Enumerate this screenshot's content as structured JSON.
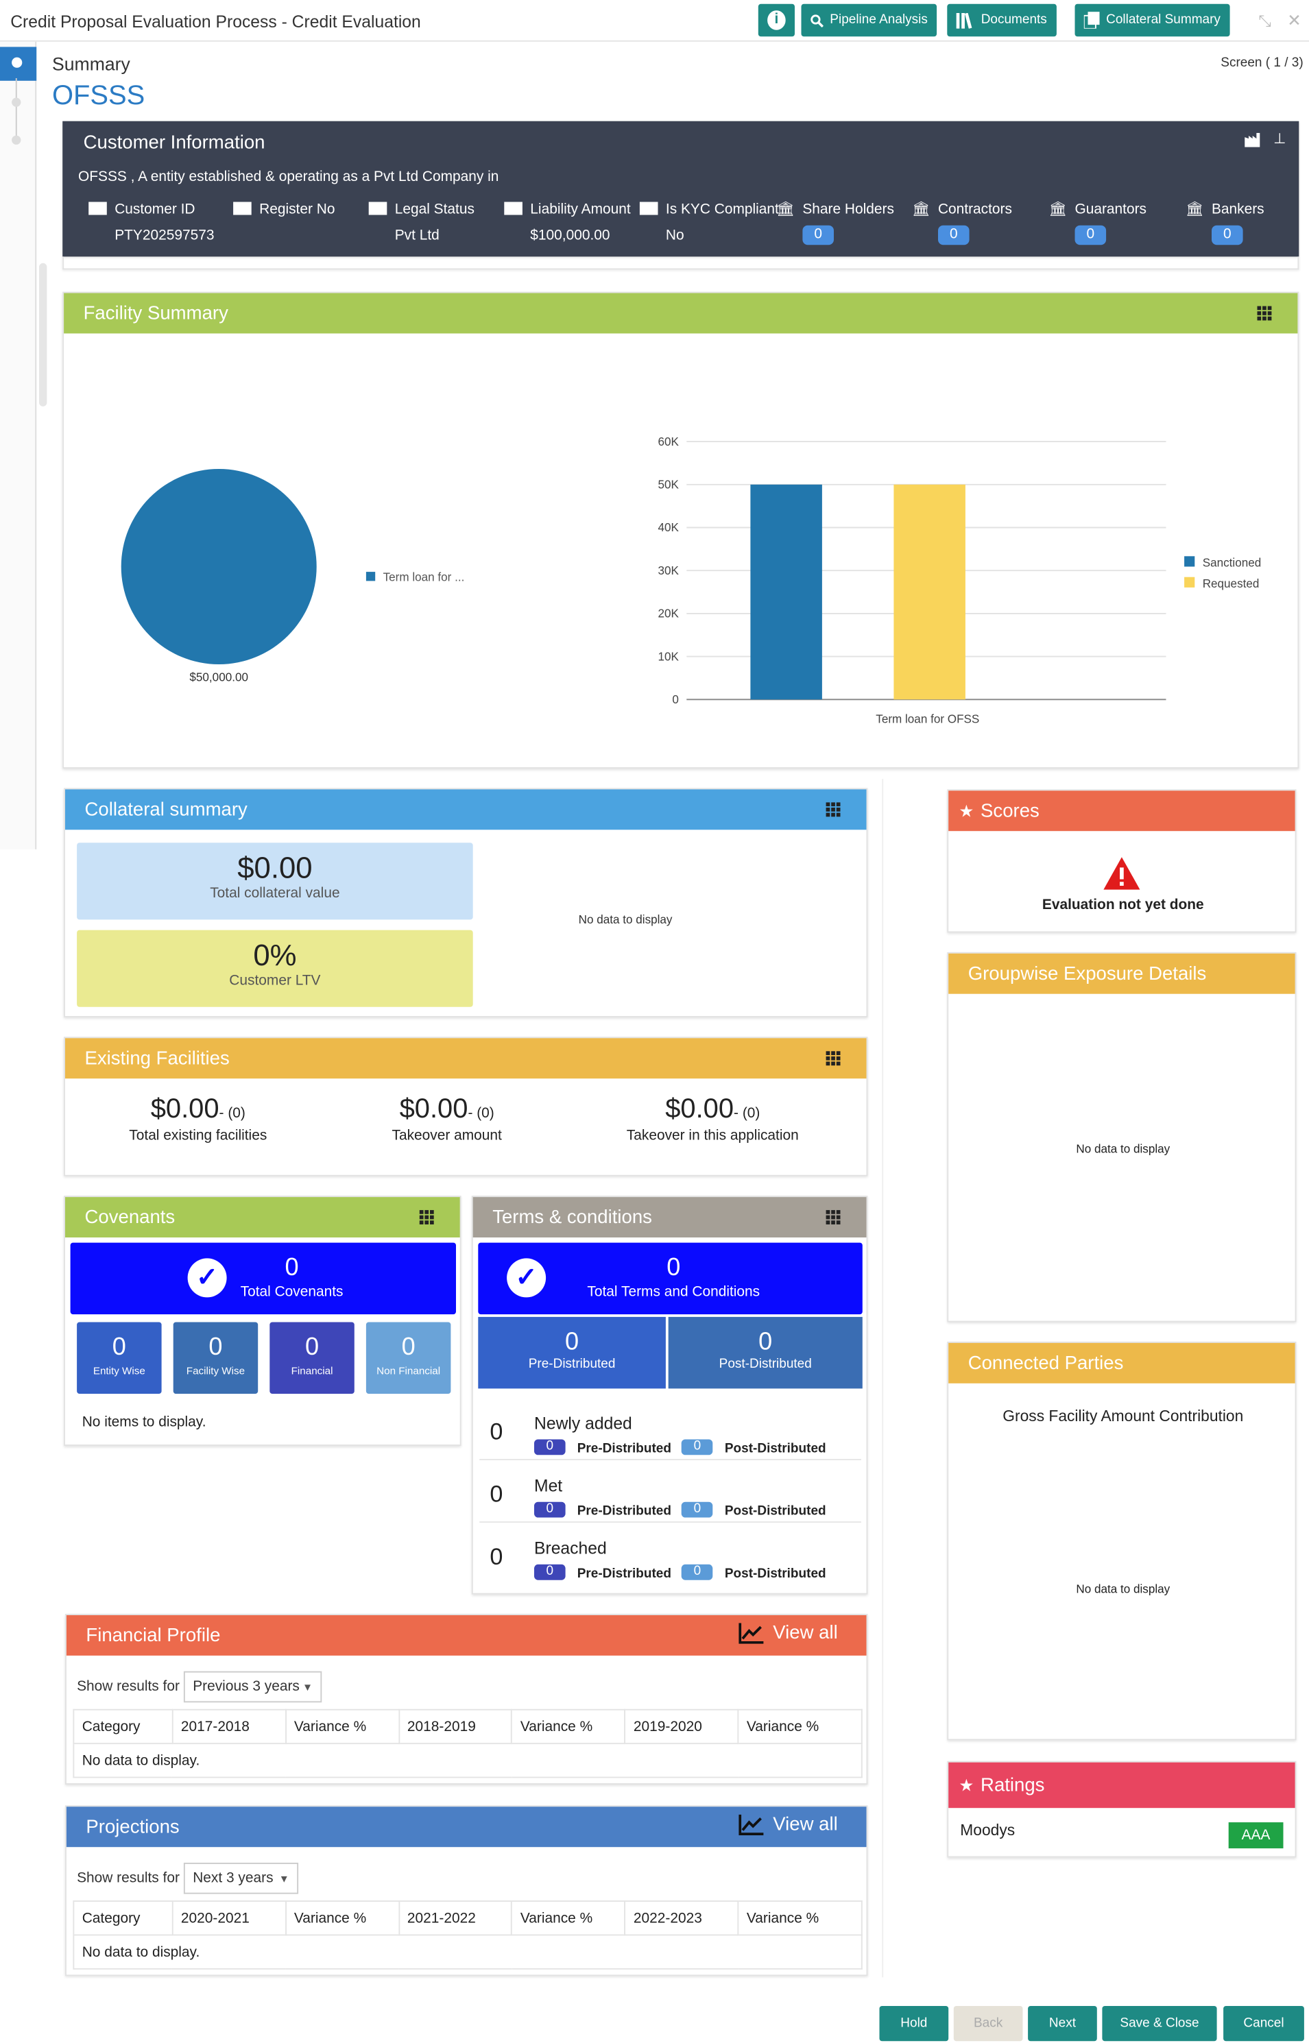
{
  "app": {
    "title": "Credit Proposal Evaluation Process - Credit Evaluation"
  },
  "toolbar": {
    "info_label": "i",
    "pipeline": "Pipeline Analysis",
    "documents": "Documents",
    "collateral": "Collateral Summary"
  },
  "page": {
    "heading": "Summary",
    "customer_name": "OFSSS",
    "screen": "Screen ( 1 / 3)"
  },
  "customer": {
    "title": "Customer Information",
    "description": "OFSSS , A entity established & operating as a Pvt Ltd Company in",
    "fields": [
      {
        "label": "Customer ID",
        "value": "PTY202597573"
      },
      {
        "label": "Register No",
        "value": ""
      },
      {
        "label": "Legal Status",
        "value": "Pvt Ltd"
      },
      {
        "label": "Liability Amount",
        "value": "$100,000.00"
      },
      {
        "label": "Is KYC Compliant",
        "value": "No"
      }
    ],
    "counts": [
      {
        "label": "Share Holders",
        "value": "0"
      },
      {
        "label": "Contractors",
        "value": "0"
      },
      {
        "label": "Guarantors",
        "value": "0"
      },
      {
        "label": "Bankers",
        "value": "0"
      }
    ]
  },
  "facility": {
    "title": "Facility Summary",
    "pie_label": "$50,000.00",
    "pie_legend": "Term loan for ..."
  },
  "chart_data": [
    {
      "type": "pie",
      "categories": [
        "Term loan for ..."
      ],
      "values": [
        50000
      ],
      "data_labels": [
        "$50,000.00"
      ],
      "colors": [
        "#2277ad"
      ]
    },
    {
      "type": "bar",
      "categories": [
        "Term loan for OFSS"
      ],
      "series": [
        {
          "name": "Sanctioned",
          "values": [
            50000
          ],
          "color": "#2277ad"
        },
        {
          "name": "Requested",
          "values": [
            50000
          ],
          "color": "#f9d45a"
        }
      ],
      "ylim": [
        0,
        60000
      ],
      "yticks": [
        "0",
        "10K",
        "20K",
        "30K",
        "40K",
        "50K",
        "60K"
      ],
      "legend": "right"
    }
  ],
  "collateral": {
    "title": "Collateral summary",
    "total_value": "$0.00",
    "total_label": "Total collateral value",
    "ltv": "0%",
    "ltv_label": "Customer LTV",
    "no_data": "No data to display"
  },
  "existing": {
    "title": "Existing Facilities",
    "items": [
      {
        "amount": "$0.00",
        "count": "- (0)",
        "label": "Total existing facilities"
      },
      {
        "amount": "$0.00",
        "count": "- (0)",
        "label": "Takeover amount"
      },
      {
        "amount": "$0.00",
        "count": "- (0)",
        "label": "Takeover in this application"
      }
    ]
  },
  "covenants": {
    "title": "Covenants",
    "total": "0",
    "total_label": "Total Covenants",
    "tiles": [
      {
        "value": "0",
        "label": "Entity Wise"
      },
      {
        "value": "0",
        "label": "Facility Wise"
      },
      {
        "value": "0",
        "label": "Financial"
      },
      {
        "value": "0",
        "label": "Non Financial"
      }
    ],
    "empty": "No items to display."
  },
  "terms": {
    "title": "Terms & conditions",
    "total": "0",
    "total_label": "Total Terms and Conditions",
    "pre": {
      "value": "0",
      "label": "Pre-Distributed"
    },
    "post": {
      "value": "0",
      "label": "Post-Distributed"
    },
    "rows": [
      {
        "count": "0",
        "label": "Newly added",
        "pre": "0",
        "post": "0"
      },
      {
        "count": "0",
        "label": "Met",
        "pre": "0",
        "post": "0"
      },
      {
        "count": "0",
        "label": "Breached",
        "pre": "0",
        "post": "0"
      }
    ],
    "pre_label": "Pre-Distributed",
    "post_label": "Post-Distributed"
  },
  "financial": {
    "title": "Financial Profile",
    "view_all": "View all",
    "show_label": "Show results for",
    "select": "Previous 3 years",
    "columns": [
      "Category",
      "2017-2018",
      "Variance %",
      "2018-2019",
      "Variance %",
      "2019-2020",
      "Variance %"
    ],
    "empty": "No data to display."
  },
  "projections": {
    "title": "Projections",
    "view_all": "View all",
    "show_label": "Show results for",
    "select": "Next 3 years",
    "columns": [
      "Category",
      "2020-2021",
      "Variance %",
      "2021-2022",
      "Variance %",
      "2022-2023",
      "Variance %"
    ],
    "empty": "No data to display."
  },
  "scores": {
    "title": "Scores",
    "message": "Evaluation not yet done"
  },
  "groupwise": {
    "title": "Groupwise Exposure Details",
    "no_data": "No data to display"
  },
  "connected": {
    "title": "Connected Parties",
    "subtitle": "Gross Facility Amount Contribution",
    "no_data": "No data to display"
  },
  "ratings": {
    "title": "Ratings",
    "agency": "Moodys",
    "grade": "AAA"
  },
  "footer": {
    "hold": "Hold",
    "back": "Back",
    "next": "Next",
    "save": "Save & Close",
    "cancel": "Cancel"
  },
  "colors": {
    "teal": "#1e8a84",
    "dark": "#3b4252",
    "green": "#a8c956",
    "blue": "#4ba3e0",
    "orange": "#edb94a",
    "tomato": "#ec6a4c",
    "red": "#e84560"
  }
}
